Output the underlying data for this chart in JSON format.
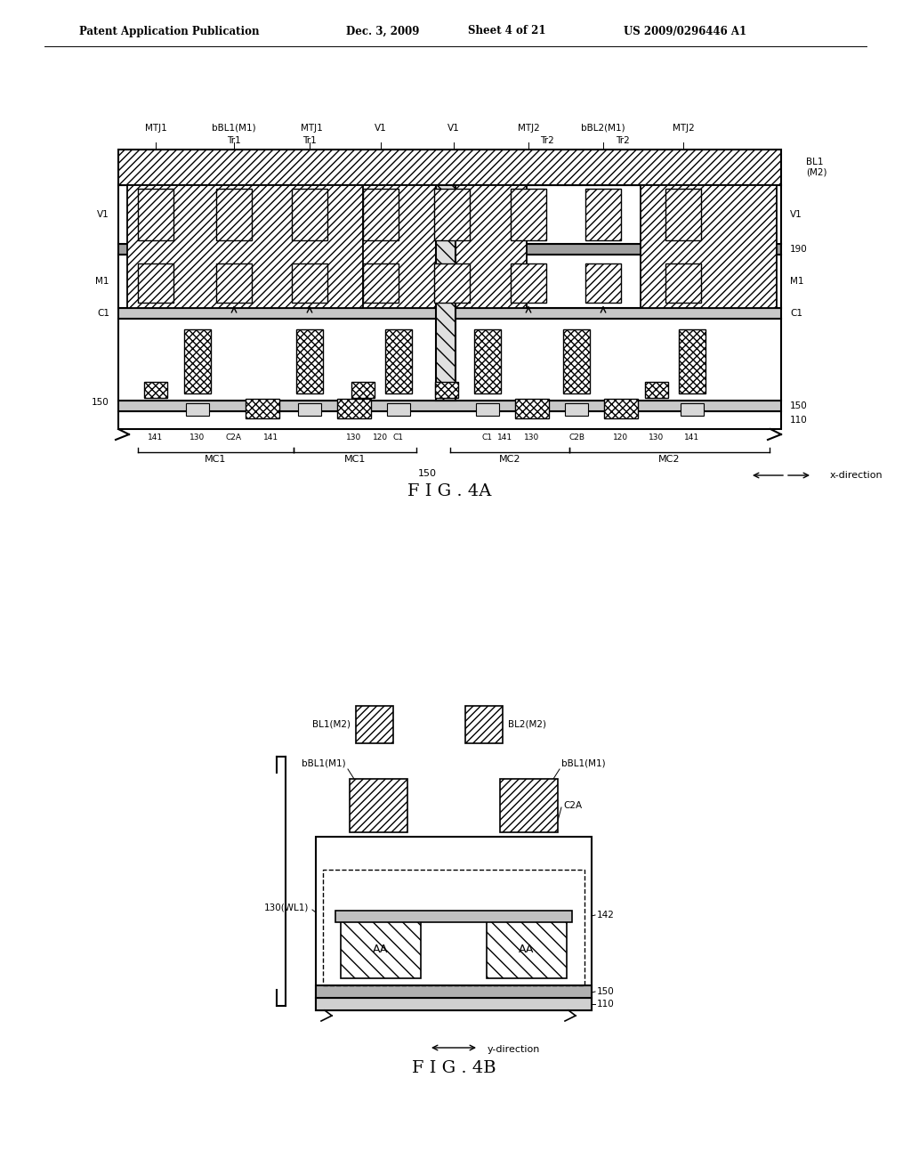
{
  "background_color": "#ffffff",
  "header_left": "Patent Application Publication",
  "header_date": "Dec. 3, 2009",
  "header_sheet": "Sheet 4 of 21",
  "header_patent": "US 2009/0296446 A1",
  "fig4a_caption": "F I G . 4A",
  "fig4b_caption": "F I G . 4B"
}
